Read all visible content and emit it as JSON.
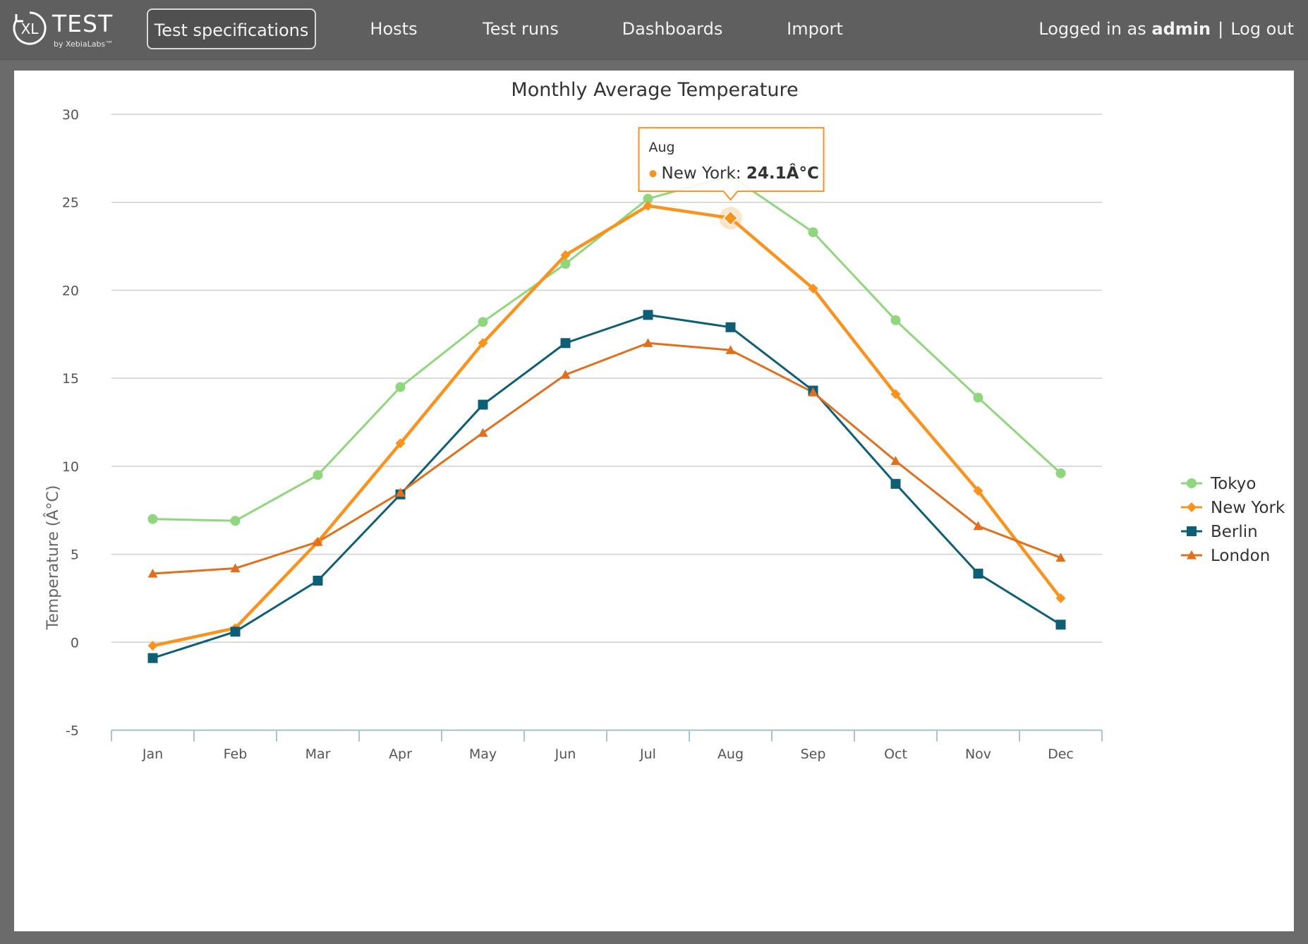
{
  "app": {
    "logo_text": "TEST",
    "logo_mark": "XL",
    "logo_sub": "by XebiaLabs™"
  },
  "nav": {
    "items": [
      {
        "label": "Test specifications",
        "active": true
      },
      {
        "label": "Hosts",
        "active": false
      },
      {
        "label": "Test runs",
        "active": false
      },
      {
        "label": "Dashboards",
        "active": false
      },
      {
        "label": "Import",
        "active": false
      }
    ]
  },
  "user": {
    "prefix": "Logged in as",
    "name": "admin",
    "separator": "|",
    "logout_label": "Log out"
  },
  "tooltip": {
    "category": "Aug",
    "series": "New York",
    "value_text": "24.1Â°C",
    "color": "#f7931e"
  },
  "chart_data": {
    "type": "line",
    "title": "Monthly Average Temperature",
    "xlabel": "",
    "ylabel": "Temperature (Â°C)",
    "ylim": [
      -5,
      30
    ],
    "yticks": [
      -5,
      0,
      5,
      10,
      15,
      20,
      25,
      30
    ],
    "grid": true,
    "legend_position": "right",
    "categories": [
      "Jan",
      "Feb",
      "Mar",
      "Apr",
      "May",
      "Jun",
      "Jul",
      "Aug",
      "Sep",
      "Oct",
      "Nov",
      "Dec"
    ],
    "series": [
      {
        "name": "Tokyo",
        "color": "#90d67e",
        "marker": "circle",
        "values": [
          7.0,
          6.9,
          9.5,
          14.5,
          18.2,
          21.5,
          25.2,
          26.5,
          23.3,
          18.3,
          13.9,
          9.6
        ]
      },
      {
        "name": "New York",
        "color": "#f7931e",
        "marker": "diamond",
        "values": [
          -0.2,
          0.8,
          5.7,
          11.3,
          17.0,
          22.0,
          24.8,
          24.1,
          20.1,
          14.1,
          8.6,
          2.5
        ]
      },
      {
        "name": "Berlin",
        "color": "#0e5f75",
        "marker": "square",
        "values": [
          -0.9,
          0.6,
          3.5,
          8.4,
          13.5,
          17.0,
          18.6,
          17.9,
          14.3,
          9.0,
          3.9,
          1.0
        ]
      },
      {
        "name": "London",
        "color": "#e0701e",
        "marker": "triangle",
        "values": [
          3.9,
          4.2,
          5.7,
          8.5,
          11.9,
          15.2,
          17.0,
          16.6,
          14.2,
          10.3,
          6.6,
          4.8
        ]
      }
    ]
  }
}
